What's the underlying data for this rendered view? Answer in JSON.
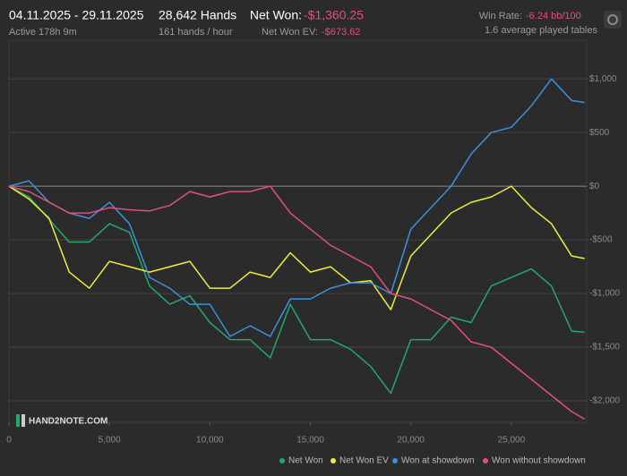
{
  "header": {
    "date_range": "04.11.2025 - 29.11.2025",
    "active": "Active 178h 9m",
    "hands": "28,642 Hands",
    "hands_rate": "161 hands / hour",
    "net_won_label": "Net Won:",
    "net_won_value": "-$1,360.25",
    "ev_label": "Net Won  EV:",
    "ev_value": "-$673.62",
    "win_rate_label": "Win Rate:",
    "win_rate_value": "-6.24 bb/100",
    "tables": "1.6 average played tables",
    "logo": "HAND2NOTE.COM"
  },
  "chart_data": {
    "type": "line",
    "x": [
      0,
      1000,
      2000,
      3000,
      4000,
      5000,
      6000,
      7000,
      8000,
      9000,
      10000,
      11000,
      12000,
      13000,
      14000,
      15000,
      16000,
      17000,
      18000,
      19000,
      20000,
      21000,
      22000,
      23000,
      24000,
      25000,
      26000,
      27000,
      28000,
      28642
    ],
    "series": [
      {
        "name": "Net Won",
        "color": "#22a86a",
        "values": [
          0,
          -100,
          -310,
          -520,
          -520,
          -350,
          -430,
          -930,
          -1100,
          -1020,
          -1270,
          -1430,
          -1430,
          -1600,
          -1100,
          -1430,
          -1430,
          -1520,
          -1680,
          -1930,
          -1430,
          -1430,
          -1220,
          -1270,
          -930,
          -850,
          -770,
          -930,
          -1350,
          -1360.25
        ]
      },
      {
        "name": "Net Won  EV",
        "color": "#eeee3a",
        "values": [
          0,
          -120,
          -300,
          -800,
          -950,
          -700,
          -750,
          -800,
          -750,
          -700,
          -950,
          -950,
          -800,
          -850,
          -620,
          -800,
          -750,
          -900,
          -880,
          -1150,
          -650,
          -450,
          -250,
          -150,
          -100,
          0,
          -200,
          -350,
          -650,
          -673.62
        ]
      },
      {
        "name": "Won at showdown",
        "color": "#3d8fe0",
        "values": [
          0,
          50,
          -150,
          -250,
          -300,
          -150,
          -350,
          -850,
          -950,
          -1100,
          -1100,
          -1400,
          -1300,
          -1400,
          -1050,
          -1050,
          -950,
          -900,
          -900,
          -1000,
          -400,
          -200,
          0,
          300,
          500,
          550,
          750,
          1000,
          800,
          780
        ]
      },
      {
        "name": "Won without showdown",
        "color": "#e0507a",
        "values": [
          0,
          -50,
          -150,
          -250,
          -250,
          -200,
          -220,
          -230,
          -180,
          -50,
          -100,
          -50,
          -50,
          0,
          -250,
          -400,
          -550,
          -650,
          -750,
          -1000,
          -1050,
          -1150,
          -1250,
          -1450,
          -1500,
          -1650,
          -1800,
          -1950,
          -2100,
          -2170
        ]
      }
    ],
    "xlim": [
      0,
      28750
    ],
    "ylim": [
      -2200,
      1360
    ],
    "xticks": [
      0,
      {
        "value": 5000,
        "label": "5,000"
      },
      {
        "value": 10000,
        "label": "10,000"
      },
      {
        "value": 15000,
        "label": "15,000"
      },
      {
        "value": 20000,
        "label": "20,000"
      },
      {
        "value": 25000,
        "label": "25,000"
      }
    ],
    "yticks": [
      {
        "value": 1000,
        "label": "$1,000"
      },
      {
        "value": 500,
        "label": "$500"
      },
      {
        "value": 0,
        "label": "$0"
      },
      {
        "value": -500,
        "label": "-$500"
      },
      {
        "value": -1000,
        "label": "-$1,000"
      },
      {
        "value": -1500,
        "label": "-$1,500"
      },
      {
        "value": -2000,
        "label": "-$2,000"
      }
    ],
    "grid": true
  }
}
